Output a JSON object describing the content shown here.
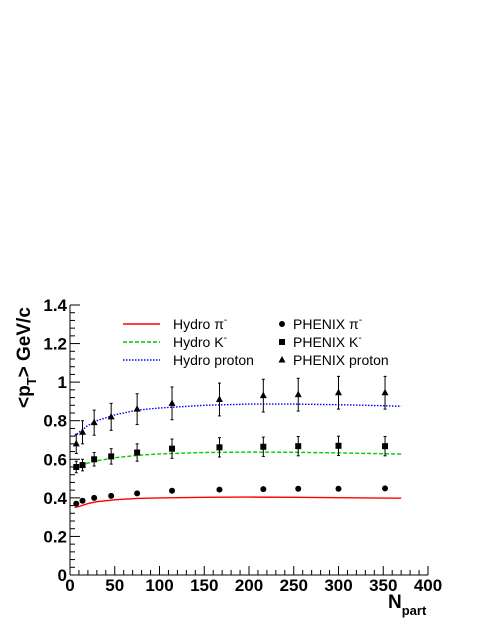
{
  "chart_data": {
    "type": "scatter",
    "title": "",
    "xlabel": "N",
    "xlabel_sub": "part",
    "ylabel": "<p",
    "ylabel_sub": "T",
    "ylabel_rest": "> GeV/c",
    "xlim": [
      0,
      400
    ],
    "ylim": [
      0,
      1.4
    ],
    "x_ticks": [
      0,
      50,
      100,
      150,
      200,
      250,
      300,
      350,
      400
    ],
    "x_tick_labels": [
      "0",
      "50",
      "100",
      "150",
      "200",
      "250",
      "300",
      "350",
      "400"
    ],
    "y_ticks": [
      0,
      0.2,
      0.4,
      0.6,
      0.8,
      1.0,
      1.2,
      1.4
    ],
    "y_tick_labels": [
      "0",
      "0.2",
      "0.4",
      "0.6",
      "0.8",
      "1",
      "1.2",
      "1.4"
    ],
    "grid": false,
    "legend_position": "top",
    "hydro_series": [
      {
        "name": "Hydro π",
        "name_sup": "-",
        "color": "#ff0000",
        "style": "solid",
        "x": [
          5,
          10,
          20,
          30,
          50,
          75,
          100,
          150,
          200,
          250,
          300,
          350,
          370
        ],
        "y": [
          0.35,
          0.355,
          0.37,
          0.38,
          0.39,
          0.397,
          0.4,
          0.403,
          0.404,
          0.403,
          0.401,
          0.399,
          0.398
        ]
      },
      {
        "name": "Hydro K",
        "name_sup": "-",
        "color": "#00cc00",
        "style": "dashed",
        "x": [
          5,
          10,
          20,
          30,
          50,
          75,
          100,
          150,
          200,
          250,
          300,
          350,
          370
        ],
        "y": [
          0.56,
          0.565,
          0.58,
          0.592,
          0.608,
          0.62,
          0.628,
          0.635,
          0.637,
          0.636,
          0.633,
          0.629,
          0.627
        ]
      },
      {
        "name": "Hydro proton",
        "name_sup": "",
        "color": "#0000ff",
        "style": "dotted",
        "x": [
          5,
          10,
          20,
          30,
          50,
          75,
          100,
          150,
          200,
          250,
          300,
          350,
          370
        ],
        "y": [
          0.72,
          0.74,
          0.775,
          0.8,
          0.83,
          0.855,
          0.866,
          0.88,
          0.886,
          0.886,
          0.883,
          0.878,
          0.875
        ]
      }
    ],
    "phenix_series": [
      {
        "name": "PHENIX π",
        "name_sup": "-",
        "marker": "circle",
        "x": [
          7,
          14,
          27,
          46,
          75,
          114,
          167,
          216,
          255,
          300,
          352
        ],
        "y": [
          0.37,
          0.385,
          0.4,
          0.41,
          0.423,
          0.437,
          0.443,
          0.445,
          0.447,
          0.447,
          0.449
        ],
        "err": [
          0,
          0,
          0,
          0,
          0,
          0,
          0,
          0,
          0,
          0,
          0
        ]
      },
      {
        "name": "PHENIX K",
        "name_sup": "-",
        "marker": "square",
        "x": [
          7,
          14,
          27,
          46,
          75,
          114,
          167,
          216,
          255,
          300,
          352
        ],
        "y": [
          0.56,
          0.57,
          0.6,
          0.615,
          0.635,
          0.655,
          0.662,
          0.665,
          0.668,
          0.67,
          0.668
        ],
        "err": [
          0.03,
          0.03,
          0.035,
          0.04,
          0.045,
          0.05,
          0.05,
          0.05,
          0.05,
          0.05,
          0.05
        ]
      },
      {
        "name": "PHENIX proton",
        "name_sup": "",
        "marker": "triangle",
        "x": [
          7,
          14,
          27,
          46,
          75,
          114,
          167,
          216,
          255,
          300,
          352
        ],
        "y": [
          0.68,
          0.74,
          0.79,
          0.82,
          0.86,
          0.89,
          0.91,
          0.93,
          0.935,
          0.945,
          0.945
        ],
        "err": [
          0.05,
          0.06,
          0.065,
          0.07,
          0.08,
          0.085,
          0.085,
          0.085,
          0.085,
          0.085,
          0.085
        ]
      }
    ]
  }
}
